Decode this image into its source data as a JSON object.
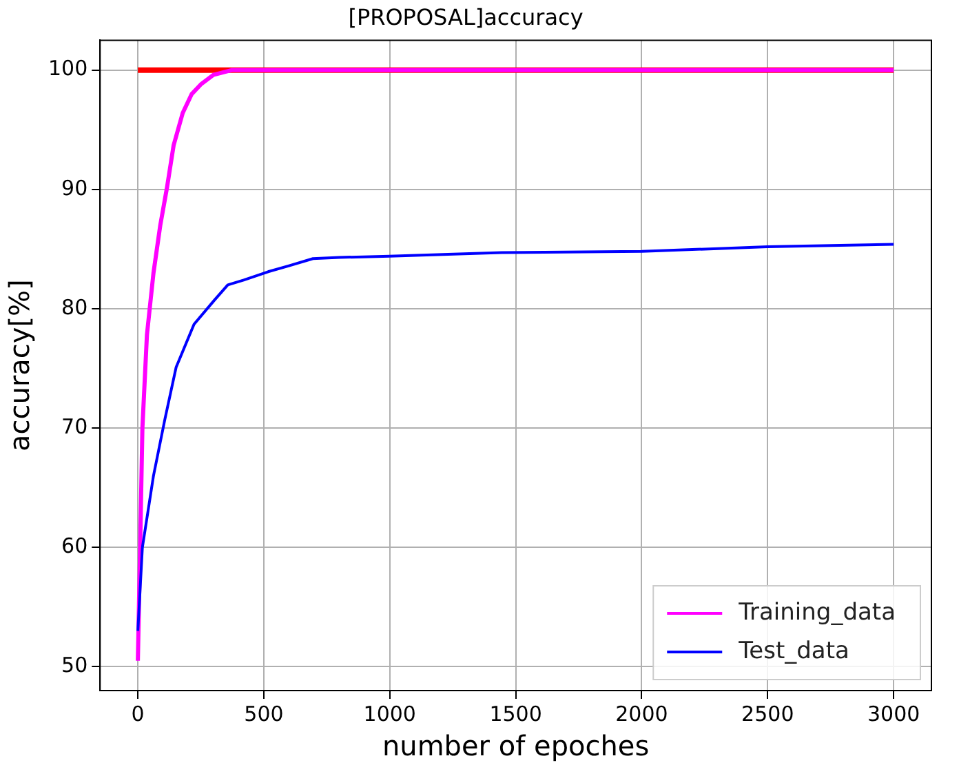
{
  "chart_data": {
    "type": "line",
    "title": "[PROPOSAL]accuracy",
    "xlabel": "number of epoches",
    "ylabel": "accuracy[%]",
    "xlim": [
      -150,
      3150
    ],
    "xticks": [
      0,
      500,
      1000,
      1500,
      2000,
      2500,
      3000
    ],
    "ylim": [
      48,
      102.5
    ],
    "yticks": [
      50,
      60,
      70,
      80,
      90,
      100
    ],
    "grid": true,
    "legend": "bottom right",
    "marker": "none",
    "line_style": "solid",
    "series": [
      {
        "color": "#ff0000",
        "x": [
          0,
          3000
        ],
        "values": [
          100,
          100
        ]
      },
      {
        "name": "Training_data",
        "color": "#ff00ff",
        "x": [
          0,
          9,
          18,
          36,
          62,
          89,
          116,
          142,
          178,
          214,
          250,
          300,
          374,
          500,
          1000,
          2000,
          3000
        ],
        "values": [
          50.5,
          60,
          70,
          77.8,
          83,
          87,
          90.2,
          93.7,
          96.4,
          98,
          98.8,
          99.6,
          100,
          100,
          100,
          100,
          100
        ]
      },
      {
        "name": "Test_data",
        "color": "#0000ff",
        "x": [
          0,
          18,
          62,
          107,
          152,
          223,
          303,
          357,
          420,
          517,
          600,
          695,
          800,
          998,
          1444,
          2000,
          2500,
          3000
        ],
        "values": [
          53,
          60,
          66,
          70.7,
          75.1,
          78.7,
          80.7,
          82,
          82.4,
          83.1,
          83.6,
          84.2,
          84.3,
          84.4,
          84.7,
          84.8,
          85.2,
          85.4
        ]
      }
    ]
  }
}
